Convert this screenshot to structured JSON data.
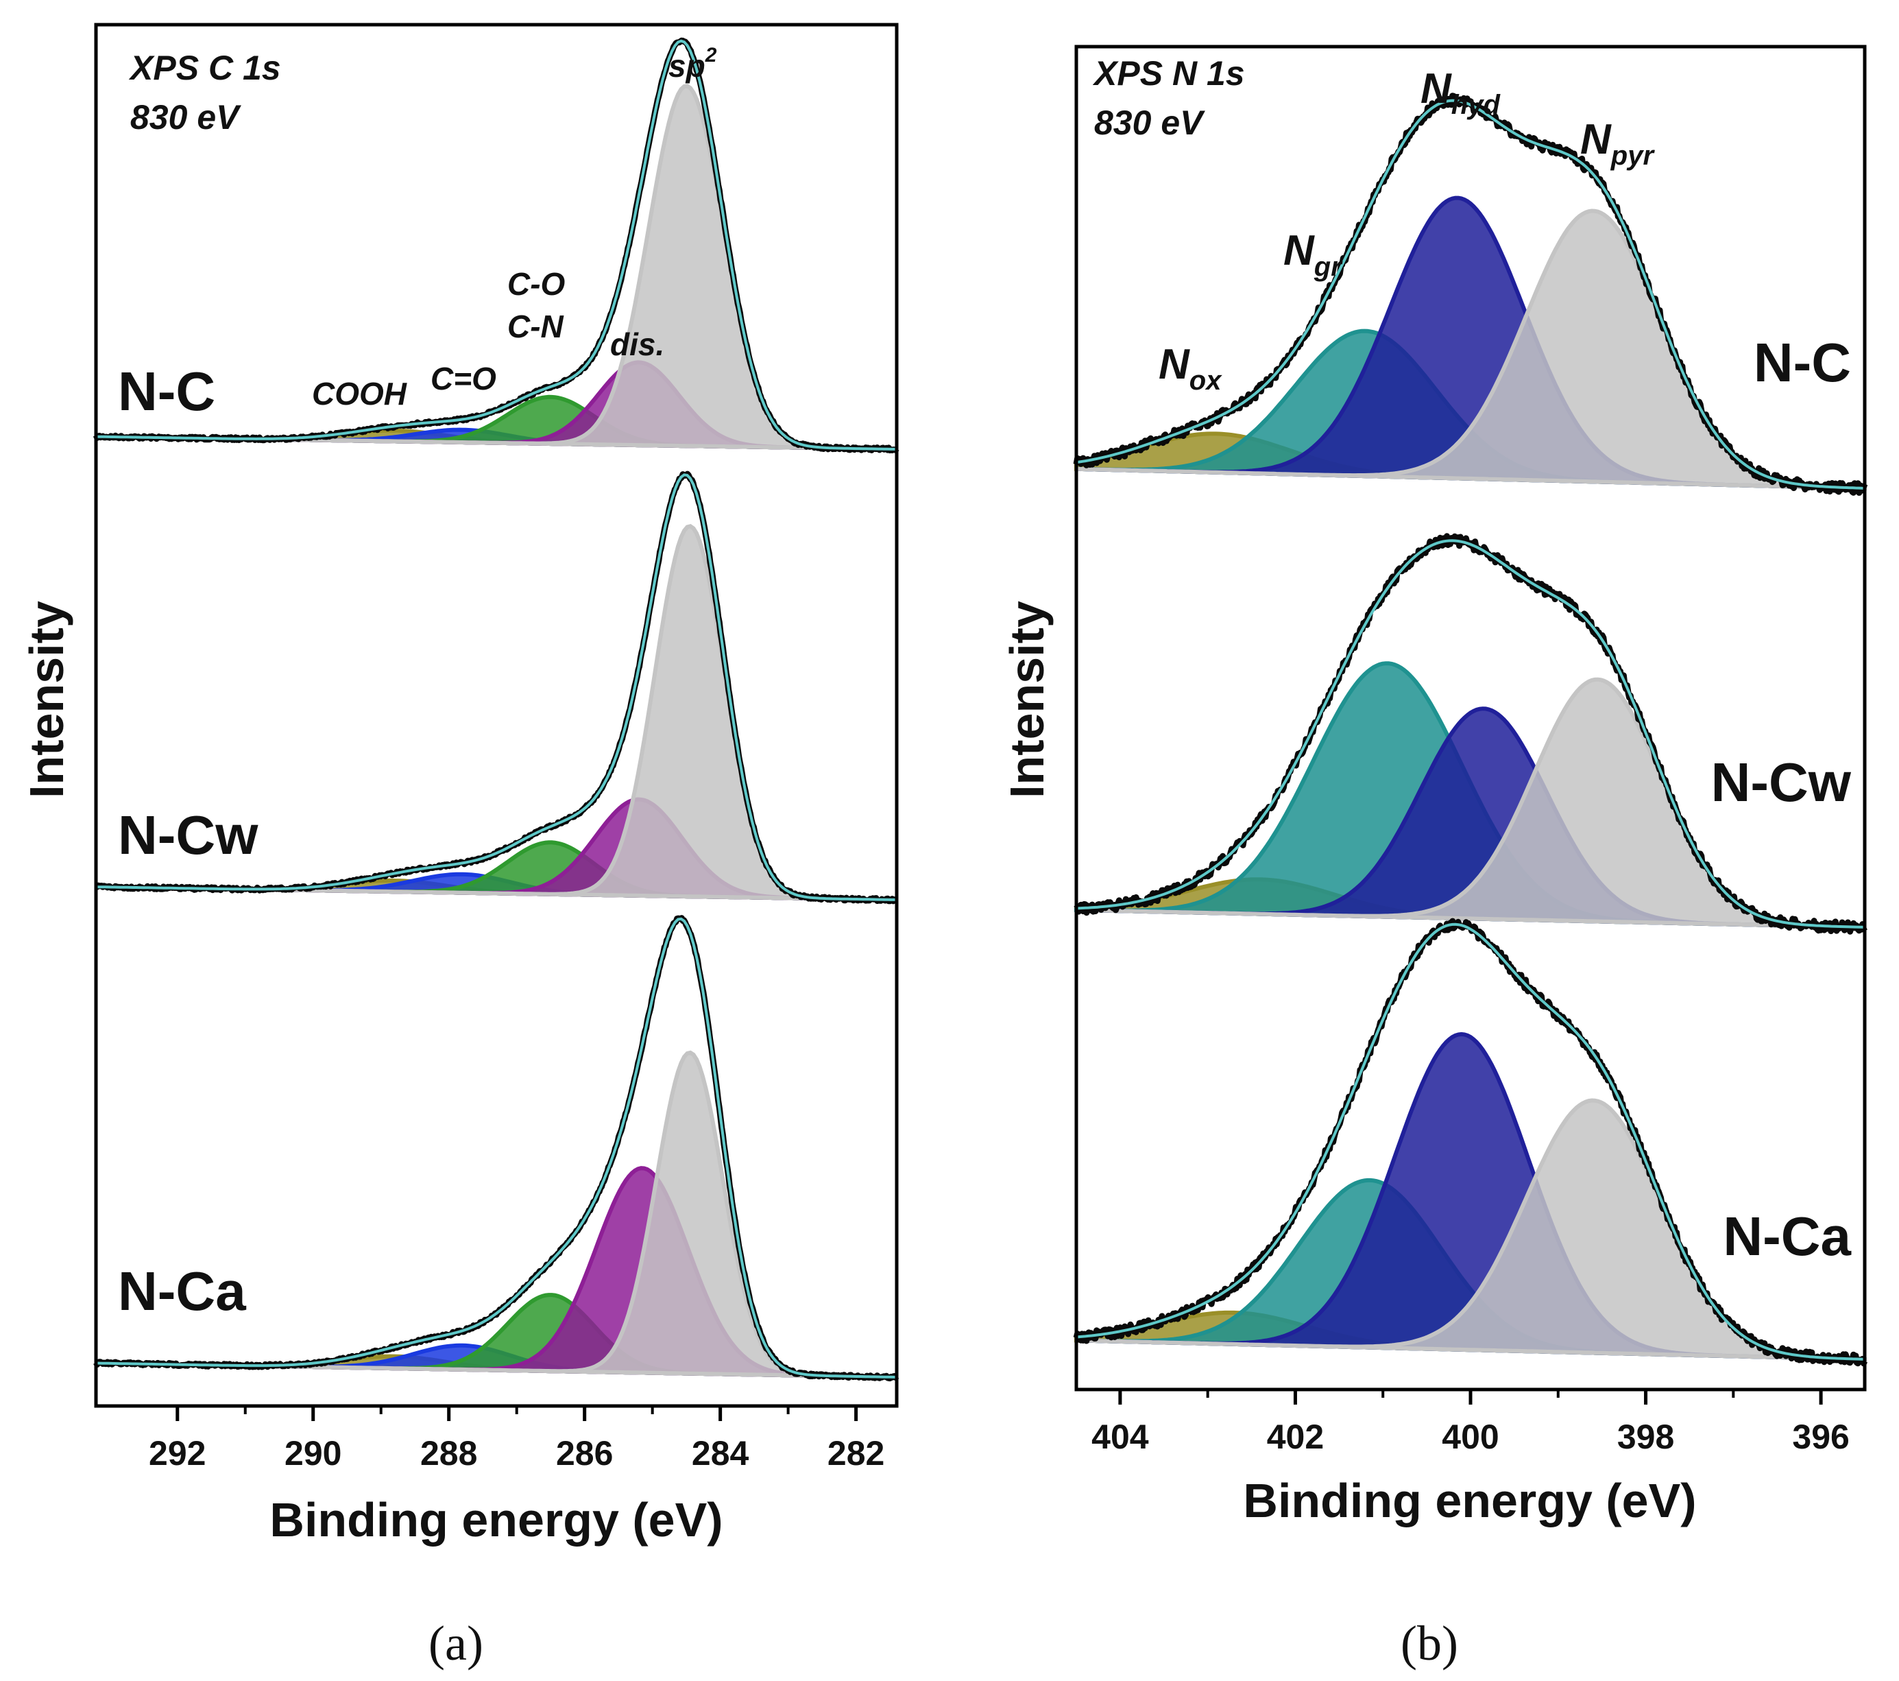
{
  "panels": [
    {
      "id": "a",
      "caption": "(a)",
      "ylabel": "Intensity",
      "xlabel": "Binding energy (eV)",
      "corner_text": [
        "XPS C 1s",
        "830 eV"
      ]
    },
    {
      "id": "b",
      "caption": "(b)",
      "ylabel": "Intensity",
      "xlabel": "Binding energy (eV)",
      "corner_text": [
        "XPS N 1s",
        "830 eV"
      ]
    }
  ],
  "peak_labels_a": {
    "sp2": "sp",
    "sp2_sup": "2",
    "dis": "dis.",
    "co": "C-O",
    "cn": "C-N",
    "c_eq_o": "C=O",
    "cooh": "COOH"
  },
  "peak_labels_b": {
    "n_hyd": "N",
    "n_hyd_sub": "hyd",
    "n_pyr": "N",
    "n_pyr_sub": "pyr",
    "n_gr": "N",
    "n_gr_sub": "gr",
    "n_ox": "N",
    "n_ox_sub": "ox"
  },
  "colors": {
    "sp2": "#c4c4c4",
    "dis": "#8e1f96",
    "co": "#2f9a2f",
    "c_eq_o": "#1a3ae0",
    "cooh": "#9a8f28",
    "n_hyd": "#20209a",
    "n_pyr": "#c4c4c4",
    "n_gr": "#1f9290",
    "n_ox": "#9a8f28",
    "data": "#0a0a0a",
    "fit": "#5ec8c8"
  },
  "chart_data": [
    {
      "type": "line",
      "title": "XPS C 1s 830 eV",
      "xlabel": "Binding energy (eV)",
      "ylabel": "Intensity",
      "xlim": [
        293.2,
        281.4
      ],
      "x_reversed": true,
      "xticks": [
        292,
        290,
        288,
        286,
        284,
        282
      ],
      "series": [
        {
          "name": "N-C",
          "components": [
            {
              "label": "sp2",
              "center": 284.5,
              "height": 1.0,
              "fwhm": 1.3
            },
            {
              "label": "dis.",
              "center": 285.2,
              "height": 0.23,
              "fwhm": 1.4
            },
            {
              "label": "C-O / C-N",
              "center": 286.5,
              "height": 0.13,
              "fwhm": 1.5
            },
            {
              "label": "C=O",
              "center": 287.8,
              "height": 0.035,
              "fwhm": 1.6
            },
            {
              "label": "COOH",
              "center": 288.8,
              "height": 0.03,
              "fwhm": 1.8
            }
          ]
        },
        {
          "name": "N-Cw",
          "components": [
            {
              "label": "sp2",
              "center": 284.45,
              "height": 1.0,
              "fwhm": 1.2
            },
            {
              "label": "dis.",
              "center": 285.2,
              "height": 0.26,
              "fwhm": 1.5
            },
            {
              "label": "C-O / C-N",
              "center": 286.5,
              "height": 0.14,
              "fwhm": 1.5
            },
            {
              "label": "C=O",
              "center": 287.8,
              "height": 0.05,
              "fwhm": 1.7
            },
            {
              "label": "COOH",
              "center": 288.8,
              "height": 0.03,
              "fwhm": 1.8
            }
          ]
        },
        {
          "name": "N-Ca",
          "components": [
            {
              "label": "sp2",
              "center": 284.45,
              "height": 0.8,
              "fwhm": 1.15
            },
            {
              "label": "dis.",
              "center": 285.15,
              "height": 0.51,
              "fwhm": 1.6
            },
            {
              "label": "C-O / C-N",
              "center": 286.5,
              "height": 0.19,
              "fwhm": 1.5
            },
            {
              "label": "C=O",
              "center": 287.8,
              "height": 0.06,
              "fwhm": 1.7
            },
            {
              "label": "COOH",
              "center": 288.8,
              "height": 0.03,
              "fwhm": 1.8
            }
          ]
        }
      ]
    },
    {
      "type": "line",
      "title": "XPS N 1s 830 eV",
      "xlabel": "Binding energy (eV)",
      "ylabel": "Intensity",
      "xlim": [
        404.5,
        395.5
      ],
      "x_reversed": true,
      "xticks": [
        404,
        402,
        400,
        398,
        396
      ],
      "series": [
        {
          "name": "N-C",
          "components": [
            {
              "label": "N pyr",
              "center": 398.6,
              "height": 0.84,
              "fwhm": 1.8
            },
            {
              "label": "N hyd",
              "center": 400.15,
              "height": 0.87,
              "fwhm": 1.8
            },
            {
              "label": "N gr",
              "center": 401.2,
              "height": 0.45,
              "fwhm": 1.9
            },
            {
              "label": "N ox",
              "center": 402.9,
              "height": 0.12,
              "fwhm": 2.0
            }
          ]
        },
        {
          "name": "N-Cw",
          "components": [
            {
              "label": "N pyr",
              "center": 398.55,
              "height": 0.84,
              "fwhm": 1.7
            },
            {
              "label": "N hyd",
              "center": 399.85,
              "height": 0.73,
              "fwhm": 1.7
            },
            {
              "label": "N gr",
              "center": 400.95,
              "height": 0.88,
              "fwhm": 2.0
            },
            {
              "label": "N ox",
              "center": 402.4,
              "height": 0.12,
              "fwhm": 2.0
            }
          ]
        },
        {
          "name": "N-Ca",
          "components": [
            {
              "label": "N pyr",
              "center": 398.6,
              "height": 0.8,
              "fwhm": 1.8
            },
            {
              "label": "N hyd",
              "center": 400.1,
              "height": 1.0,
              "fwhm": 1.8
            },
            {
              "label": "N gr",
              "center": 401.15,
              "height": 0.53,
              "fwhm": 1.9
            },
            {
              "label": "N ox",
              "center": 402.7,
              "height": 0.1,
              "fwhm": 2.0
            }
          ]
        }
      ]
    }
  ]
}
